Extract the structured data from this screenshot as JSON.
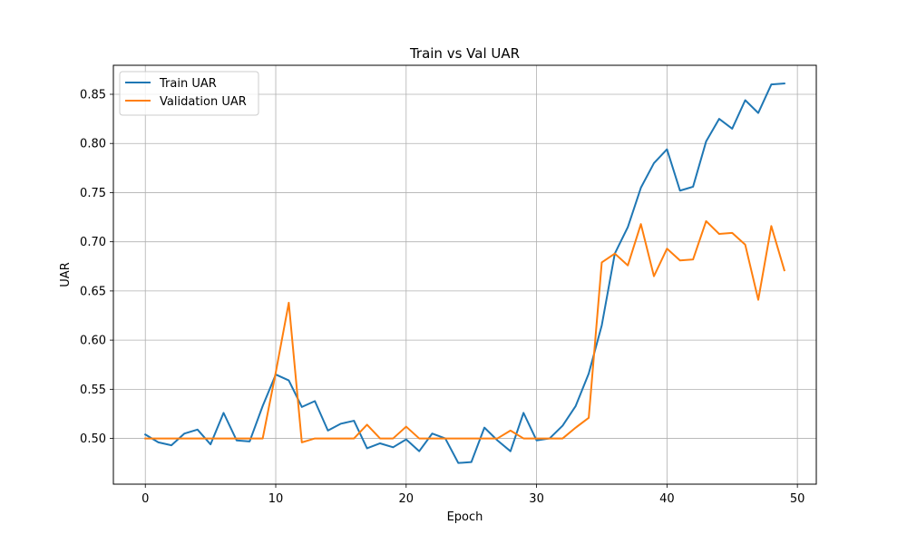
{
  "chart_data": {
    "type": "line",
    "title": "Train vs Val UAR",
    "xlabel": "Epoch",
    "ylabel": "UAR",
    "xlim": [
      -2.45,
      51.45
    ],
    "ylim": [
      0.4535,
      0.8795
    ],
    "xticks": [
      0,
      10,
      20,
      30,
      40,
      50
    ],
    "yticks": [
      0.5,
      0.55,
      0.6,
      0.65,
      0.7,
      0.75,
      0.8,
      0.85
    ],
    "xtick_labels": [
      "0",
      "10",
      "20",
      "30",
      "40",
      "50"
    ],
    "ytick_labels": [
      "0.50",
      "0.55",
      "0.60",
      "0.65",
      "0.70",
      "0.75",
      "0.80",
      "0.85"
    ],
    "grid": true,
    "legend_position": "upper-left",
    "x": [
      0,
      1,
      2,
      3,
      4,
      5,
      6,
      7,
      8,
      9,
      10,
      11,
      12,
      13,
      14,
      15,
      16,
      17,
      18,
      19,
      20,
      21,
      22,
      23,
      24,
      25,
      26,
      27,
      28,
      29,
      30,
      31,
      32,
      33,
      34,
      35,
      36,
      37,
      38,
      39,
      40,
      41,
      42,
      43,
      44,
      45,
      46,
      47,
      48,
      49
    ],
    "series": [
      {
        "name": "Train UAR",
        "color": "#1f77b4",
        "values": [
          0.504,
          0.496,
          0.493,
          0.505,
          0.509,
          0.494,
          0.526,
          0.498,
          0.497,
          0.533,
          0.565,
          0.559,
          0.532,
          0.538,
          0.508,
          0.515,
          0.518,
          0.49,
          0.495,
          0.491,
          0.499,
          0.487,
          0.505,
          0.5,
          0.475,
          0.476,
          0.511,
          0.498,
          0.487,
          0.526,
          0.498,
          0.5,
          0.513,
          0.533,
          0.566,
          0.615,
          0.688,
          0.715,
          0.755,
          0.78,
          0.794,
          0.752,
          0.756,
          0.802,
          0.825,
          0.815,
          0.844,
          0.831,
          0.86,
          0.861
        ]
      },
      {
        "name": "Validation UAR",
        "color": "#ff7f0e",
        "values": [
          0.5,
          0.5,
          0.5,
          0.5,
          0.5,
          0.5,
          0.5,
          0.5,
          0.5,
          0.5,
          0.567,
          0.638,
          0.496,
          0.5,
          0.5,
          0.5,
          0.5,
          0.514,
          0.5,
          0.5,
          0.512,
          0.5,
          0.5,
          0.5,
          0.5,
          0.5,
          0.5,
          0.5,
          0.508,
          0.5,
          0.5,
          0.5,
          0.5,
          0.511,
          0.521,
          0.679,
          0.688,
          0.676,
          0.718,
          0.665,
          0.693,
          0.681,
          0.682,
          0.721,
          0.708,
          0.709,
          0.697,
          0.641,
          0.716,
          0.671
        ]
      }
    ]
  }
}
